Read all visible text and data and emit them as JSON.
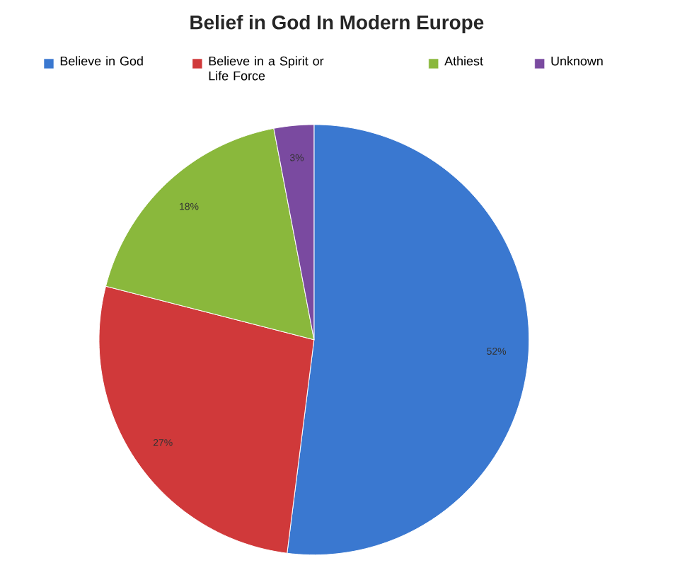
{
  "chart_data": {
    "type": "pie",
    "title": "Belief in God In Modern Europe",
    "categories": [
      "Believe in God",
      "Believe in a Spirit or Life Force",
      "Athiest",
      "Unknown"
    ],
    "values": [
      52,
      27,
      18,
      3
    ],
    "colors": [
      "#3a78d0",
      "#d0393a",
      "#8ab83c",
      "#7a4aa0"
    ],
    "value_labels": [
      "52%",
      "27%",
      "18%",
      "3%"
    ],
    "legend": "top"
  }
}
